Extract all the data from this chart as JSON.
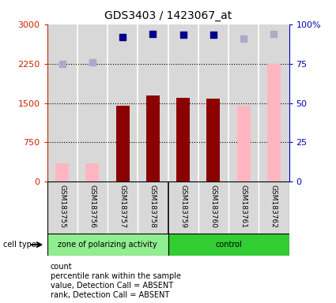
{
  "title": "GDS3403 / 1423067_at",
  "samples": [
    "GSM183755",
    "GSM183756",
    "GSM183757",
    "GSM183758",
    "GSM183759",
    "GSM183760",
    "GSM183761",
    "GSM183762"
  ],
  "count_values": [
    null,
    null,
    1450,
    1650,
    1600,
    1580,
    null,
    null
  ],
  "absent_value": [
    350,
    350,
    null,
    null,
    null,
    null,
    1450,
    2250
  ],
  "rank_values": [
    null,
    null,
    2750,
    2820,
    2800,
    2800,
    null,
    null
  ],
  "absent_rank": [
    2250,
    2280,
    null,
    null,
    null,
    null,
    2730,
    2820
  ],
  "group1_label": "zone of polarizing activity",
  "group2_label": "control",
  "cell_type_label": "cell type",
  "ylim": [
    0,
    3000
  ],
  "yticks": [
    0,
    750,
    1500,
    2250,
    3000
  ],
  "yticklabels": [
    "0",
    "750",
    "1500",
    "2250",
    "3000"
  ],
  "y2ticks_val": [
    0,
    750,
    1500,
    2250,
    3000
  ],
  "y2ticks_pct": [
    "0",
    "25",
    "50",
    "75",
    "100%"
  ],
  "bar_color_present": "#8B0000",
  "bar_color_absent": "#FFB6C1",
  "dot_color_present": "#00008B",
  "dot_color_absent": "#AAAACC",
  "left_tick_color": "#CC2200",
  "right_tick_color": "#0000BB",
  "grid_color": "#000000",
  "bg_plot": "#D8D8D8",
  "bg_group1": "#90EE90",
  "bg_group2": "#32CD32",
  "legend_labels": [
    "count",
    "percentile rank within the sample",
    "value, Detection Call = ABSENT",
    "rank, Detection Call = ABSENT"
  ],
  "legend_colors": [
    "#CC0000",
    "#00008B",
    "#FFB6C1",
    "#AAAACC"
  ],
  "bar_width": 0.45,
  "dot_size": 40
}
